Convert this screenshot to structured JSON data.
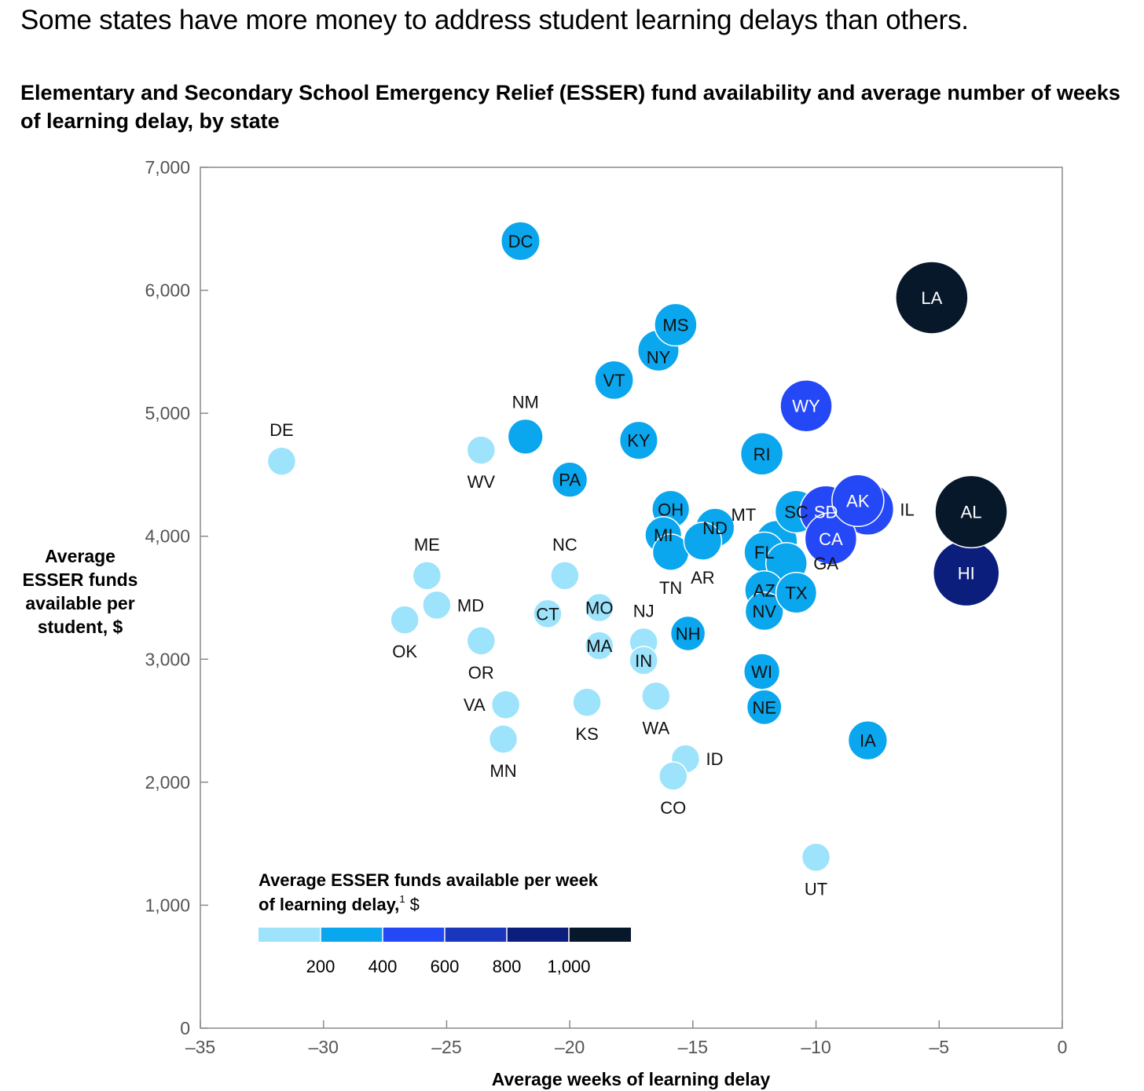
{
  "header": {
    "headline": "Some states have more money to address student learning delays than others.",
    "subtitle": "Elementary and Secondary School Emergency Relief (ESSER) fund availability and average number of weeks of learning delay, by state"
  },
  "chart_data": {
    "type": "scatter",
    "title": "Elementary and Secondary School Emergency Relief (ESSER) fund availability and average number of weeks of learning delay, by state",
    "xlabel": "Average weeks of learning delay",
    "ylabel_lines": [
      "Average",
      "ESSER funds",
      "available per",
      "student, $"
    ],
    "xlim": [
      -35,
      0
    ],
    "ylim": [
      0,
      7000
    ],
    "x_ticks": [
      -35,
      -30,
      -25,
      -20,
      -15,
      -10,
      -5,
      0
    ],
    "x_tick_labels": [
      "–35",
      "–30",
      "–25",
      "–20",
      "–15",
      "–10",
      "–5",
      "0"
    ],
    "y_ticks": [
      0,
      1000,
      2000,
      3000,
      4000,
      5000,
      6000,
      7000
    ],
    "y_tick_labels": [
      "0",
      "1,000",
      "2,000",
      "3,000",
      "4,000",
      "5,000",
      "6,000",
      "7,000"
    ],
    "grid": false,
    "bubble_size_and_color": "Average ESSER funds available per week of learning delay",
    "legend": {
      "title_lines": [
        "Average ESSER funds available per week",
        "of learning delay,"
      ],
      "title_suffix": " $",
      "footnote": "1",
      "placement": "bottom-left",
      "ticks": [
        "200",
        "400",
        "600",
        "800",
        "1,000"
      ],
      "colors": [
        "#9de3fb",
        "#0aa6ee",
        "#2448f6",
        "#1a36bd",
        "#0b1e7c",
        "#07182a"
      ]
    },
    "points": [
      {
        "state": "DE",
        "x": -31.7,
        "y": 4610,
        "band": 0,
        "label_pos": "above"
      },
      {
        "state": "DC",
        "x": -22.0,
        "y": 6400,
        "band": 1,
        "label_pos": "inside"
      },
      {
        "state": "NM",
        "x": -21.8,
        "y": 4810,
        "band": 1,
        "label_pos": "above"
      },
      {
        "state": "WV",
        "x": -23.6,
        "y": 4700,
        "band": 0,
        "label_pos": "below"
      },
      {
        "state": "PA",
        "x": -20.0,
        "y": 4460,
        "band": 1,
        "label_pos": "inside"
      },
      {
        "state": "VT",
        "x": -18.2,
        "y": 5270,
        "band": 1,
        "label_pos": "inside"
      },
      {
        "state": "NY",
        "x": -16.4,
        "y": 5510,
        "band": 1,
        "label_pos": "inside-low"
      },
      {
        "state": "MS",
        "x": -15.7,
        "y": 5720,
        "band": 1,
        "label_pos": "inside"
      },
      {
        "state": "KY",
        "x": -17.2,
        "y": 4780,
        "band": 1,
        "label_pos": "inside"
      },
      {
        "state": "RI",
        "x": -12.2,
        "y": 4670,
        "band": 1,
        "label_pos": "inside"
      },
      {
        "state": "WY",
        "x": -10.4,
        "y": 5060,
        "band": 2,
        "label_pos": "inside"
      },
      {
        "state": "LA",
        "x": -5.3,
        "y": 5940,
        "band": 5,
        "label_pos": "inside"
      },
      {
        "state": "ME",
        "x": -25.8,
        "y": 3680,
        "band": 0,
        "label_pos": "above"
      },
      {
        "state": "MD",
        "x": -25.4,
        "y": 3440,
        "band": 0,
        "label_pos": "right"
      },
      {
        "state": "OK",
        "x": -26.7,
        "y": 3320,
        "band": 0,
        "label_pos": "below"
      },
      {
        "state": "OR",
        "x": -23.6,
        "y": 3150,
        "band": 0,
        "label_pos": "below"
      },
      {
        "state": "VA",
        "x": -22.6,
        "y": 2630,
        "band": 0,
        "label_pos": "left"
      },
      {
        "state": "MN",
        "x": -22.7,
        "y": 2350,
        "band": 0,
        "label_pos": "below"
      },
      {
        "state": "NC",
        "x": -20.2,
        "y": 3680,
        "band": 0,
        "label_pos": "above"
      },
      {
        "state": "CT",
        "x": -20.9,
        "y": 3370,
        "band": 0,
        "label_pos": "inside"
      },
      {
        "state": "MO",
        "x": -18.8,
        "y": 3420,
        "band": 0,
        "label_pos": "inside"
      },
      {
        "state": "MA",
        "x": -18.8,
        "y": 3110,
        "band": 0,
        "label_pos": "inside"
      },
      {
        "state": "KS",
        "x": -19.3,
        "y": 2650,
        "band": 0,
        "label_pos": "below"
      },
      {
        "state": "NJ",
        "x": -17.0,
        "y": 3140,
        "band": 0,
        "label_pos": "above"
      },
      {
        "state": "IN",
        "x": -17.0,
        "y": 2990,
        "band": 0,
        "label_pos": "inside"
      },
      {
        "state": "WA",
        "x": -16.5,
        "y": 2700,
        "band": 0,
        "label_pos": "below"
      },
      {
        "state": "ID",
        "x": -15.3,
        "y": 2190,
        "band": 0,
        "label_pos": "right"
      },
      {
        "state": "CO",
        "x": -15.8,
        "y": 2050,
        "band": 0,
        "label_pos": "below"
      },
      {
        "state": "OH",
        "x": -15.9,
        "y": 4220,
        "band": 1,
        "label_pos": "inside"
      },
      {
        "state": "MI",
        "x": -16.2,
        "y": 4010,
        "band": 1,
        "label_pos": "inside"
      },
      {
        "state": "TN",
        "x": -15.9,
        "y": 3870,
        "band": 1,
        "label_pos": "below"
      },
      {
        "state": "ND",
        "x": -14.1,
        "y": 4070,
        "band": 1,
        "label_pos": "inside"
      },
      {
        "state": "AR",
        "x": -14.6,
        "y": 3960,
        "band": 1,
        "label_pos": "below"
      },
      {
        "state": "NH",
        "x": -15.2,
        "y": 3210,
        "band": 1,
        "label_pos": "inside"
      },
      {
        "state": "MT",
        "x": -11.6,
        "y": 3960,
        "band": 1,
        "label_pos": "above-left"
      },
      {
        "state": "FL",
        "x": -12.1,
        "y": 3870,
        "band": 1,
        "label_pos": "inside"
      },
      {
        "state": "GA",
        "x": -11.2,
        "y": 3780,
        "band": 1,
        "label_pos": "right"
      },
      {
        "state": "AZ",
        "x": -12.1,
        "y": 3560,
        "band": 1,
        "label_pos": "inside"
      },
      {
        "state": "NV",
        "x": -12.1,
        "y": 3390,
        "band": 1,
        "label_pos": "inside"
      },
      {
        "state": "TX",
        "x": -10.8,
        "y": 3540,
        "band": 1,
        "label_pos": "inside"
      },
      {
        "state": "SC",
        "x": -10.8,
        "y": 4200,
        "band": 1,
        "label_pos": "inside"
      },
      {
        "state": "WI",
        "x": -12.2,
        "y": 2900,
        "band": 1,
        "label_pos": "inside"
      },
      {
        "state": "NE",
        "x": -12.1,
        "y": 2610,
        "band": 1,
        "label_pos": "inside"
      },
      {
        "state": "IL",
        "x": -7.9,
        "y": 4220,
        "band": 2,
        "label_pos": "right"
      },
      {
        "state": "SD",
        "x": -9.6,
        "y": 4200,
        "band": 2,
        "label_pos": "inside"
      },
      {
        "state": "CA",
        "x": -9.4,
        "y": 3980,
        "band": 2,
        "label_pos": "inside"
      },
      {
        "state": "AK",
        "x": -8.3,
        "y": 4290,
        "band": 2,
        "label_pos": "inside"
      },
      {
        "state": "AL",
        "x": -3.7,
        "y": 4200,
        "band": 5,
        "label_pos": "inside"
      },
      {
        "state": "HI",
        "x": -3.9,
        "y": 3700,
        "band": 4,
        "label_pos": "inside"
      },
      {
        "state": "IA",
        "x": -7.9,
        "y": 2340,
        "band": 1,
        "label_pos": "inside"
      },
      {
        "state": "UT",
        "x": -10.0,
        "y": 1390,
        "band": 0,
        "label_pos": "below"
      }
    ]
  }
}
